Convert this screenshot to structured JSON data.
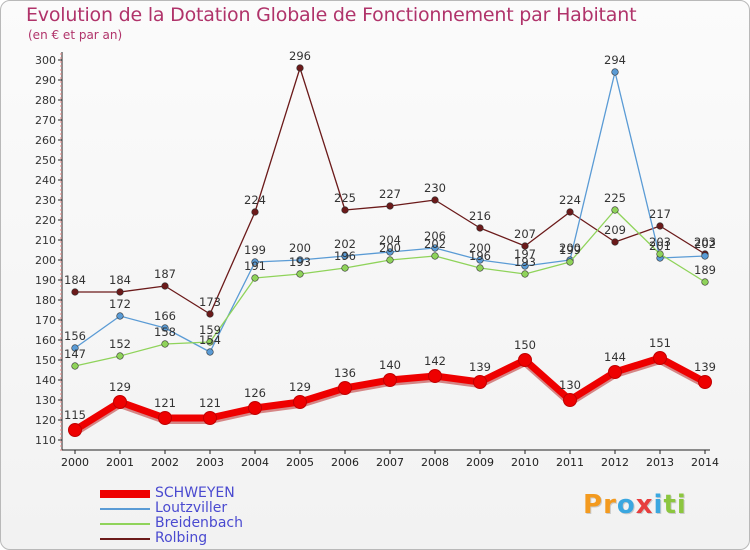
{
  "title": "Evolution de la Dotation Globale de Fonctionnement par Habitant",
  "subtitle": "(en € et par an)",
  "logo": {
    "text": "Proxiti",
    "letters": [
      "P",
      "r",
      "o",
      "x",
      "i",
      "t",
      "i"
    ],
    "colors": [
      "#f39a1f",
      "#f39a1f",
      "#3aa7e0",
      "#e73e3e",
      "#3aa7e0",
      "#8cc63f",
      "#8cc63f"
    ]
  },
  "chart_data": {
    "type": "line",
    "title": "Evolution de la Dotation Globale de Fonctionnement par Habitant",
    "subtitle": "(en € et par an)",
    "categories": [
      "2000",
      "2001",
      "2002",
      "2003",
      "2004",
      "2005",
      "2006",
      "2007",
      "2008",
      "2009",
      "2010",
      "2011",
      "2012",
      "2013",
      "2014"
    ],
    "ylim": [
      105,
      305
    ],
    "yticks": [
      110,
      120,
      130,
      140,
      150,
      160,
      170,
      180,
      190,
      200,
      210,
      220,
      230,
      240,
      250,
      260,
      270,
      280,
      290,
      300
    ],
    "grid": false,
    "legend_position": "bottom-left",
    "series": [
      {
        "name": "Rolbing",
        "color": "#6b1a1a",
        "values": [
          184,
          184,
          187,
          173,
          224,
          296,
          225,
          227,
          230,
          216,
          207,
          224,
          209,
          217,
          203
        ]
      },
      {
        "name": "Loutzviller",
        "color": "#5a9bd5",
        "values": [
          156,
          172,
          166,
          154,
          199,
          200,
          202,
          204,
          206,
          200,
          197,
          200,
          294,
          201,
          202
        ]
      },
      {
        "name": "Breidenbach",
        "color": "#8fd35a",
        "values": [
          147,
          152,
          158,
          159,
          191,
          193,
          196,
          200,
          202,
          196,
          193,
          199,
          225,
          203,
          189
        ]
      },
      {
        "name": "SCHWEYEN",
        "color": "#ee0000",
        "values": [
          115,
          129,
          121,
          121,
          126,
          129,
          136,
          140,
          142,
          139,
          150,
          130,
          144,
          151,
          139
        ]
      }
    ]
  }
}
